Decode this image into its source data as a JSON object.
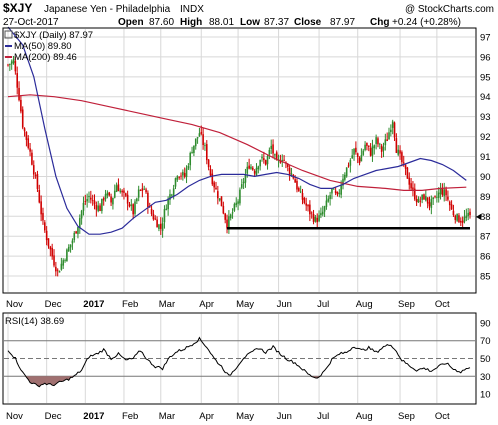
{
  "header": {
    "symbol": "$XJY",
    "name": "Japanese Yen - Philadelphia",
    "exchange": "INDX",
    "watermark": "@ StockCharts.com",
    "date": "27-Oct-2017",
    "open_label": "Open",
    "open": "87.60",
    "high_label": "High",
    "high": "88.01",
    "low_label": "Low",
    "low": "87.37",
    "close_label": "Close",
    "close": "87.97",
    "chg_label": "Chg",
    "chg": "+0.24 (+0.28%)"
  },
  "legend": {
    "price": "$XJY (Daily) 87.97",
    "ma50": "MA(50) 89.80",
    "ma200": "MA(200) 89.46",
    "rsi": "RSI(14) 38.69"
  },
  "colors": {
    "up": "#2e8b2e",
    "down": "#d00000",
    "ma50": "#2b2b9a",
    "ma200": "#c0203a",
    "rsi_fill": "#a07070",
    "support": "#000000"
  },
  "chart_data": [
    {
      "type": "candlestick",
      "title": "$XJY Japanese Yen - Philadelphia INDX",
      "ylim": [
        84.2,
        97.4
      ],
      "y_ticks": [
        "97",
        "96",
        "95",
        "94",
        "93",
        "92",
        "91",
        "90",
        "89",
        "88",
        "87",
        "86",
        "85"
      ],
      "x_tick_labels": [
        "Nov",
        "Dec",
        "2017",
        "Feb",
        "Mar",
        "Apr",
        "May",
        "Jun",
        "Jul",
        "Aug",
        "Sep",
        "Oct"
      ],
      "month_index": [
        0,
        21,
        42,
        63,
        83,
        105,
        125,
        147,
        169,
        190,
        213,
        233
      ],
      "close_anchors": [
        [
          0,
          95.6
        ],
        [
          3,
          95.8
        ],
        [
          6,
          94.0
        ],
        [
          8,
          92.6
        ],
        [
          12,
          91.2
        ],
        [
          16,
          89.4
        ],
        [
          19,
          87.6
        ],
        [
          22,
          86.6
        ],
        [
          25,
          85.7
        ],
        [
          27,
          85.2
        ],
        [
          29,
          85.6
        ],
        [
          32,
          86.2
        ],
        [
          35,
          86.8
        ],
        [
          38,
          87.6
        ],
        [
          41,
          88.6
        ],
        [
          44,
          89.0
        ],
        [
          47,
          88.6
        ],
        [
          50,
          88.4
        ],
        [
          53,
          89.2
        ],
        [
          56,
          88.7
        ],
        [
          59,
          89.6
        ],
        [
          62,
          89.1
        ],
        [
          65,
          88.8
        ],
        [
          68,
          88.2
        ],
        [
          71,
          89.2
        ],
        [
          74,
          89.4
        ],
        [
          77,
          88.3
        ],
        [
          80,
          87.8
        ],
        [
          83,
          87.4
        ],
        [
          86,
          88.6
        ],
        [
          89,
          89.3
        ],
        [
          92,
          90.2
        ],
        [
          96,
          90.0
        ],
        [
          100,
          91.4
        ],
        [
          104,
          92.2
        ],
        [
          107,
          91.4
        ],
        [
          110,
          90.1
        ],
        [
          113,
          89.3
        ],
        [
          116,
          88.6
        ],
        [
          119,
          87.6
        ],
        [
          122,
          88.2
        ],
        [
          125,
          88.8
        ],
        [
          128,
          89.8
        ],
        [
          131,
          90.6
        ],
        [
          134,
          90.3
        ],
        [
          137,
          90.9
        ],
        [
          140,
          90.7
        ],
        [
          143,
          91.5
        ],
        [
          146,
          90.6
        ],
        [
          149,
          91.0
        ],
        [
          152,
          90.4
        ],
        [
          155,
          90.0
        ],
        [
          158,
          89.2
        ],
        [
          161,
          88.7
        ],
        [
          164,
          88.2
        ],
        [
          167,
          87.8
        ],
        [
          170,
          88.0
        ],
        [
          173,
          88.6
        ],
        [
          176,
          89.3
        ],
        [
          179,
          88.9
        ],
        [
          182,
          90.0
        ],
        [
          185,
          90.6
        ],
        [
          188,
          91.3
        ],
        [
          191,
          90.8
        ],
        [
          194,
          91.6
        ],
        [
          197,
          91.2
        ],
        [
          200,
          91.8
        ],
        [
          203,
          91.3
        ],
        [
          206,
          91.9
        ],
        [
          209,
          92.9
        ],
        [
          211,
          91.4
        ],
        [
          214,
          90.7
        ],
        [
          217,
          90.0
        ],
        [
          220,
          89.2
        ],
        [
          223,
          88.7
        ],
        [
          226,
          89.0
        ],
        [
          229,
          88.6
        ],
        [
          232,
          88.8
        ],
        [
          235,
          89.3
        ],
        [
          238,
          89.1
        ],
        [
          241,
          88.3
        ],
        [
          244,
          87.9
        ],
        [
          247,
          87.8
        ],
        [
          249,
          87.97
        ]
      ],
      "ma50": [
        [
          0,
          97.5
        ],
        [
          8,
          96.6
        ],
        [
          14,
          95.0
        ],
        [
          20,
          92.4
        ],
        [
          26,
          90.0
        ],
        [
          32,
          88.4
        ],
        [
          38,
          87.5
        ],
        [
          44,
          87.1
        ],
        [
          50,
          87.1
        ],
        [
          56,
          87.2
        ],
        [
          62,
          87.4
        ],
        [
          68,
          87.9
        ],
        [
          74,
          88.3
        ],
        [
          80,
          88.7
        ],
        [
          86,
          88.8
        ],
        [
          92,
          89.1
        ],
        [
          98,
          89.5
        ],
        [
          104,
          89.8
        ],
        [
          110,
          90.0
        ],
        [
          116,
          90.1
        ],
        [
          122,
          90.1
        ],
        [
          128,
          90.1
        ],
        [
          134,
          90.0
        ],
        [
          140,
          90.1
        ],
        [
          146,
          90.2
        ],
        [
          152,
          90.1
        ],
        [
          158,
          89.9
        ],
        [
          164,
          89.6
        ],
        [
          170,
          89.4
        ],
        [
          176,
          89.4
        ],
        [
          182,
          89.6
        ],
        [
          188,
          89.9
        ],
        [
          194,
          90.1
        ],
        [
          200,
          90.3
        ],
        [
          206,
          90.4
        ],
        [
          212,
          90.5
        ],
        [
          218,
          90.7
        ],
        [
          224,
          90.9
        ],
        [
          230,
          90.8
        ],
        [
          236,
          90.6
        ],
        [
          242,
          90.3
        ],
        [
          249,
          89.8
        ]
      ],
      "ma200": [
        [
          0,
          94.0
        ],
        [
          12,
          94.1
        ],
        [
          25,
          94.0
        ],
        [
          40,
          93.8
        ],
        [
          55,
          93.5
        ],
        [
          70,
          93.2
        ],
        [
          85,
          92.9
        ],
        [
          100,
          92.6
        ],
        [
          115,
          92.2
        ],
        [
          130,
          91.6
        ],
        [
          145,
          90.9
        ],
        [
          160,
          90.3
        ],
        [
          175,
          89.8
        ],
        [
          190,
          89.5
        ],
        [
          205,
          89.4
        ],
        [
          215,
          89.3
        ],
        [
          225,
          89.3
        ],
        [
          235,
          89.4
        ],
        [
          249,
          89.46
        ]
      ],
      "annotations": [
        {
          "type": "horizontal_line",
          "y": 87.4,
          "x_start_index": 119,
          "x_end_index": 251,
          "label": "support"
        }
      ],
      "last_close": 87.97
    },
    {
      "type": "line",
      "title": "RSI(14)",
      "ylim": [
        0,
        100
      ],
      "y_ticks": [
        "90",
        "70",
        "50",
        "30",
        "10"
      ],
      "reference_lines": [
        70,
        50,
        30
      ],
      "rsi": [
        [
          0,
          60
        ],
        [
          4,
          50
        ],
        [
          8,
          34
        ],
        [
          12,
          24
        ],
        [
          16,
          19
        ],
        [
          20,
          22
        ],
        [
          24,
          20
        ],
        [
          28,
          23
        ],
        [
          32,
          26
        ],
        [
          36,
          30
        ],
        [
          40,
          37
        ],
        [
          44,
          52
        ],
        [
          48,
          55
        ],
        [
          52,
          60
        ],
        [
          56,
          50
        ],
        [
          60,
          55
        ],
        [
          64,
          48
        ],
        [
          68,
          50
        ],
        [
          72,
          59
        ],
        [
          76,
          48
        ],
        [
          80,
          41
        ],
        [
          84,
          39
        ],
        [
          88,
          52
        ],
        [
          92,
          58
        ],
        [
          96,
          61
        ],
        [
          100,
          66
        ],
        [
          104,
          72
        ],
        [
          108,
          63
        ],
        [
          112,
          50
        ],
        [
          116,
          41
        ],
        [
          120,
          30
        ],
        [
          124,
          40
        ],
        [
          128,
          51
        ],
        [
          132,
          56
        ],
        [
          136,
          62
        ],
        [
          140,
          57
        ],
        [
          144,
          63
        ],
        [
          148,
          55
        ],
        [
          152,
          49
        ],
        [
          156,
          45
        ],
        [
          160,
          38
        ],
        [
          164,
          31
        ],
        [
          168,
          28
        ],
        [
          172,
          36
        ],
        [
          176,
          49
        ],
        [
          180,
          55
        ],
        [
          184,
          57
        ],
        [
          188,
          64
        ],
        [
          192,
          59
        ],
        [
          196,
          62
        ],
        [
          200,
          57
        ],
        [
          204,
          63
        ],
        [
          208,
          66
        ],
        [
          211,
          58
        ],
        [
          214,
          48
        ],
        [
          218,
          42
        ],
        [
          222,
          37
        ],
        [
          226,
          39
        ],
        [
          230,
          36
        ],
        [
          234,
          41
        ],
        [
          238,
          45
        ],
        [
          242,
          38
        ],
        [
          246,
          35
        ],
        [
          249,
          38.69
        ]
      ]
    }
  ]
}
